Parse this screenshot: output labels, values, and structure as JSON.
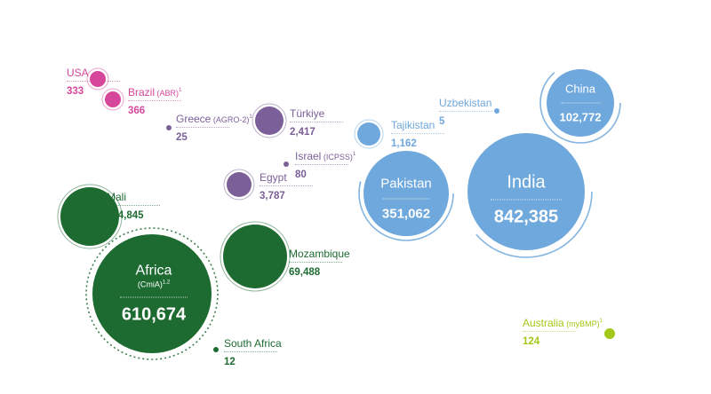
{
  "colors": {
    "americas": "#d6479b",
    "mideast": "#7b5f98",
    "asia": "#6fa8dc",
    "africa": "#1e6b32",
    "oceania": "#a4c818"
  },
  "chart_data": {
    "type": "bubble",
    "title": "",
    "points": [
      {
        "name": "USA",
        "qualifier": "",
        "sup": "",
        "value": 333,
        "region": "americas"
      },
      {
        "name": "Brazil",
        "qualifier": "(ABR)",
        "sup": "1",
        "value": 366,
        "region": "americas"
      },
      {
        "name": "Greece",
        "qualifier": "(AGRO-2)",
        "sup": "1",
        "value": 25,
        "region": "mideast"
      },
      {
        "name": "Türkiye",
        "qualifier": "",
        "sup": "",
        "value": 2417,
        "region": "mideast"
      },
      {
        "name": "Israel",
        "qualifier": "(ICPSS)",
        "sup": "1",
        "value": 80,
        "region": "mideast"
      },
      {
        "name": "Egypt",
        "qualifier": "",
        "sup": "",
        "value": 3787,
        "region": "mideast"
      },
      {
        "name": "Tajikistan",
        "qualifier": "",
        "sup": "",
        "value": 1162,
        "region": "asia"
      },
      {
        "name": "Uzbekistan",
        "qualifier": "",
        "sup": "",
        "value": 5,
        "region": "asia"
      },
      {
        "name": "China",
        "qualifier": "",
        "sup": "",
        "value": 102772,
        "region": "asia"
      },
      {
        "name": "Pakistan",
        "qualifier": "",
        "sup": "",
        "value": 351062,
        "region": "asia"
      },
      {
        "name": "India",
        "qualifier": "",
        "sup": "",
        "value": 842385,
        "region": "asia"
      },
      {
        "name": "Mali",
        "qualifier": "",
        "sup": "",
        "value": 144845,
        "region": "africa"
      },
      {
        "name": "Mozambique",
        "qualifier": "",
        "sup": "",
        "value": 69488,
        "region": "africa"
      },
      {
        "name": "Africa",
        "qualifier": "(CmiA)",
        "sup": "1,2",
        "value": 610674,
        "region": "africa"
      },
      {
        "name": "South Africa",
        "qualifier": "",
        "sup": "",
        "value": 12,
        "region": "africa"
      },
      {
        "name": "Australia",
        "qualifier": "(myBMP)",
        "sup": "1",
        "value": 124,
        "region": "oceania"
      }
    ],
    "values_formatted": [
      "333",
      "366",
      "25",
      "2,417",
      "80",
      "3,787",
      "1,162",
      "5",
      "102,772",
      "351,062",
      "842,385",
      "144,845",
      "69,488",
      "610,674",
      "12",
      "124"
    ]
  }
}
